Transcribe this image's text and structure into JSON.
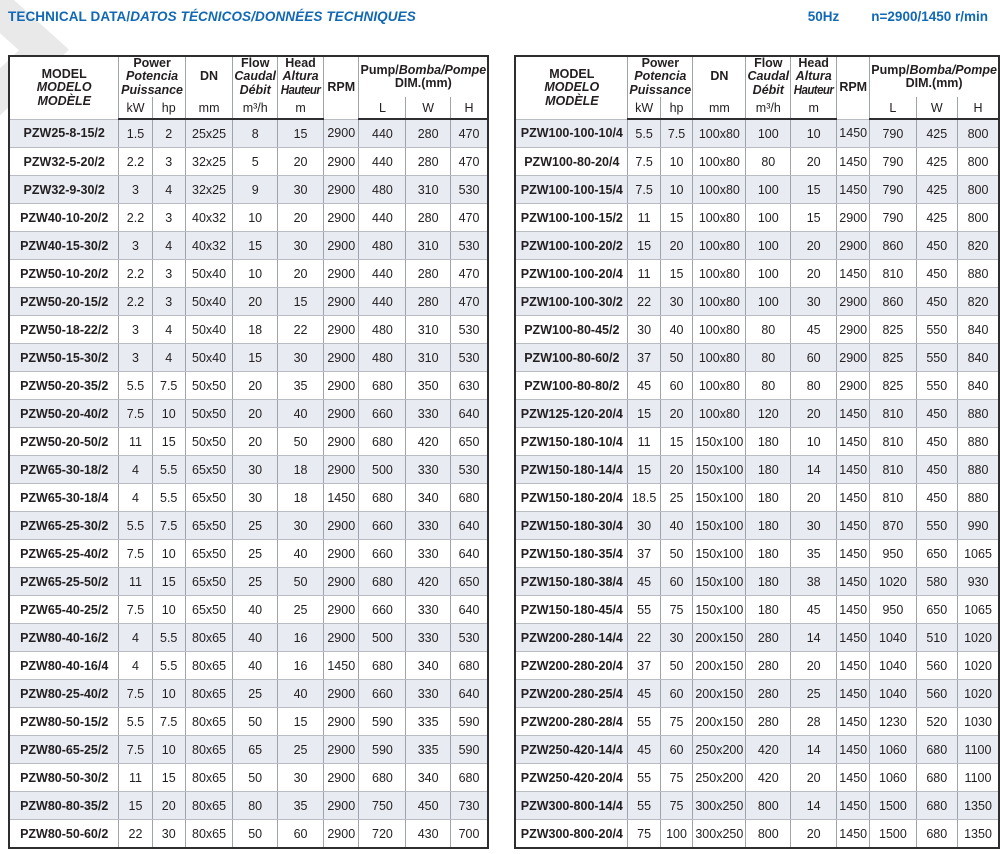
{
  "page": {
    "title_roman": "TECHNICAL DATA/",
    "title_italic": "DATOS TÉCNICOS/DONNÉES TECHNIQUES",
    "frequency": "50Hz",
    "speed": "n=2900/1450 r/min",
    "accent_color": "#1168b4",
    "row_shade_color": "#e8ebf2"
  },
  "header": {
    "model": {
      "l1": "MODEL",
      "l2": "MODELO",
      "l3": "MODÈLE"
    },
    "power": {
      "l1": "Power",
      "l2": "Potencia",
      "l3": "Puissance",
      "u1": "kW",
      "u2": "hp"
    },
    "dn": {
      "label": "DN",
      "unit": "mm"
    },
    "flow": {
      "l1": "Flow",
      "l2": "Caudal",
      "l3": "Débit",
      "unit": "m³/h"
    },
    "head": {
      "l1": "Head",
      "l2": "Altura",
      "l3": "Hauteur",
      "unit": "m"
    },
    "rpm": {
      "label": "RPM"
    },
    "dim": {
      "roman": "Pump/",
      "italic": "Bomba/Pompe",
      "sub": "DIM.(mm)",
      "u1": "L",
      "u2": "W",
      "u3": "H"
    }
  },
  "left_table": {
    "rows": [
      [
        "PZW25-8-15/2",
        "1.5",
        "2",
        "25x25",
        "8",
        "15",
        "2900",
        "440",
        "280",
        "470"
      ],
      [
        "PZW32-5-20/2",
        "2.2",
        "3",
        "32x25",
        "5",
        "20",
        "2900",
        "440",
        "280",
        "470"
      ],
      [
        "PZW32-9-30/2",
        "3",
        "4",
        "32x25",
        "9",
        "30",
        "2900",
        "480",
        "310",
        "530"
      ],
      [
        "PZW40-10-20/2",
        "2.2",
        "3",
        "40x32",
        "10",
        "20",
        "2900",
        "440",
        "280",
        "470"
      ],
      [
        "PZW40-15-30/2",
        "3",
        "4",
        "40x32",
        "15",
        "30",
        "2900",
        "480",
        "310",
        "530"
      ],
      [
        "PZW50-10-20/2",
        "2.2",
        "3",
        "50x40",
        "10",
        "20",
        "2900",
        "440",
        "280",
        "470"
      ],
      [
        "PZW50-20-15/2",
        "2.2",
        "3",
        "50x40",
        "20",
        "15",
        "2900",
        "440",
        "280",
        "470"
      ],
      [
        "PZW50-18-22/2",
        "3",
        "4",
        "50x40",
        "18",
        "22",
        "2900",
        "480",
        "310",
        "530"
      ],
      [
        "PZW50-15-30/2",
        "3",
        "4",
        "50x40",
        "15",
        "30",
        "2900",
        "480",
        "310",
        "530"
      ],
      [
        "PZW50-20-35/2",
        "5.5",
        "7.5",
        "50x50",
        "20",
        "35",
        "2900",
        "680",
        "350",
        "630"
      ],
      [
        "PZW50-20-40/2",
        "7.5",
        "10",
        "50x50",
        "20",
        "40",
        "2900",
        "660",
        "330",
        "640"
      ],
      [
        "PZW50-20-50/2",
        "11",
        "15",
        "50x50",
        "20",
        "50",
        "2900",
        "680",
        "420",
        "650"
      ],
      [
        "PZW65-30-18/2",
        "4",
        "5.5",
        "65x50",
        "30",
        "18",
        "2900",
        "500",
        "330",
        "530"
      ],
      [
        "PZW65-30-18/4",
        "4",
        "5.5",
        "65x50",
        "30",
        "18",
        "1450",
        "680",
        "340",
        "680"
      ],
      [
        "PZW65-25-30/2",
        "5.5",
        "7.5",
        "65x50",
        "25",
        "30",
        "2900",
        "660",
        "330",
        "640"
      ],
      [
        "PZW65-25-40/2",
        "7.5",
        "10",
        "65x50",
        "25",
        "40",
        "2900",
        "660",
        "330",
        "640"
      ],
      [
        "PZW65-25-50/2",
        "11",
        "15",
        "65x50",
        "25",
        "50",
        "2900",
        "680",
        "420",
        "650"
      ],
      [
        "PZW65-40-25/2",
        "7.5",
        "10",
        "65x50",
        "40",
        "25",
        "2900",
        "660",
        "330",
        "640"
      ],
      [
        "PZW80-40-16/2",
        "4",
        "5.5",
        "80x65",
        "40",
        "16",
        "2900",
        "500",
        "330",
        "530"
      ],
      [
        "PZW80-40-16/4",
        "4",
        "5.5",
        "80x65",
        "40",
        "16",
        "1450",
        "680",
        "340",
        "680"
      ],
      [
        "PZW80-25-40/2",
        "7.5",
        "10",
        "80x65",
        "25",
        "40",
        "2900",
        "660",
        "330",
        "640"
      ],
      [
        "PZW80-50-15/2",
        "5.5",
        "7.5",
        "80x65",
        "50",
        "15",
        "2900",
        "590",
        "335",
        "590"
      ],
      [
        "PZW80-65-25/2",
        "7.5",
        "10",
        "80x65",
        "65",
        "25",
        "2900",
        "590",
        "335",
        "590"
      ],
      [
        "PZW80-50-30/2",
        "11",
        "15",
        "80x65",
        "50",
        "30",
        "2900",
        "680",
        "340",
        "680"
      ],
      [
        "PZW80-80-35/2",
        "15",
        "20",
        "80x65",
        "80",
        "35",
        "2900",
        "750",
        "450",
        "730"
      ],
      [
        "PZW80-50-60/2",
        "22",
        "30",
        "80x65",
        "50",
        "60",
        "2900",
        "720",
        "430",
        "700"
      ]
    ]
  },
  "right_table": {
    "rows": [
      [
        "PZW100-100-10/4",
        "5.5",
        "7.5",
        "100x80",
        "100",
        "10",
        "1450",
        "790",
        "425",
        "800"
      ],
      [
        "PZW100-80-20/4",
        "7.5",
        "10",
        "100x80",
        "80",
        "20",
        "1450",
        "790",
        "425",
        "800"
      ],
      [
        "PZW100-100-15/4",
        "7.5",
        "10",
        "100x80",
        "100",
        "15",
        "1450",
        "790",
        "425",
        "800"
      ],
      [
        "PZW100-100-15/2",
        "11",
        "15",
        "100x80",
        "100",
        "15",
        "2900",
        "790",
        "425",
        "800"
      ],
      [
        "PZW100-100-20/2",
        "15",
        "20",
        "100x80",
        "100",
        "20",
        "2900",
        "860",
        "450",
        "820"
      ],
      [
        "PZW100-100-20/4",
        "11",
        "15",
        "100x80",
        "100",
        "20",
        "1450",
        "810",
        "450",
        "880"
      ],
      [
        "PZW100-100-30/2",
        "22",
        "30",
        "100x80",
        "100",
        "30",
        "2900",
        "860",
        "450",
        "820"
      ],
      [
        "PZW100-80-45/2",
        "30",
        "40",
        "100x80",
        "80",
        "45",
        "2900",
        "825",
        "550",
        "840"
      ],
      [
        "PZW100-80-60/2",
        "37",
        "50",
        "100x80",
        "80",
        "60",
        "2900",
        "825",
        "550",
        "840"
      ],
      [
        "PZW100-80-80/2",
        "45",
        "60",
        "100x80",
        "80",
        "80",
        "2900",
        "825",
        "550",
        "840"
      ],
      [
        "PZW125-120-20/4",
        "15",
        "20",
        "100x80",
        "120",
        "20",
        "1450",
        "810",
        "450",
        "880"
      ],
      [
        "PZW150-180-10/4",
        "11",
        "15",
        "150x100",
        "180",
        "10",
        "1450",
        "810",
        "450",
        "880"
      ],
      [
        "PZW150-180-14/4",
        "15",
        "20",
        "150x100",
        "180",
        "14",
        "1450",
        "810",
        "450",
        "880"
      ],
      [
        "PZW150-180-20/4",
        "18.5",
        "25",
        "150x100",
        "180",
        "20",
        "1450",
        "810",
        "450",
        "880"
      ],
      [
        "PZW150-180-30/4",
        "30",
        "40",
        "150x100",
        "180",
        "30",
        "1450",
        "870",
        "550",
        "990"
      ],
      [
        "PZW150-180-35/4",
        "37",
        "50",
        "150x100",
        "180",
        "35",
        "1450",
        "950",
        "650",
        "1065"
      ],
      [
        "PZW150-180-38/4",
        "45",
        "60",
        "150x100",
        "180",
        "38",
        "1450",
        "1020",
        "580",
        "930"
      ],
      [
        "PZW150-180-45/4",
        "55",
        "75",
        "150x100",
        "180",
        "45",
        "1450",
        "950",
        "650",
        "1065"
      ],
      [
        "PZW200-280-14/4",
        "22",
        "30",
        "200x150",
        "280",
        "14",
        "1450",
        "1040",
        "510",
        "1020"
      ],
      [
        "PZW200-280-20/4",
        "37",
        "50",
        "200x150",
        "280",
        "20",
        "1450",
        "1040",
        "560",
        "1020"
      ],
      [
        "PZW200-280-25/4",
        "45",
        "60",
        "200x150",
        "280",
        "25",
        "1450",
        "1040",
        "560",
        "1020"
      ],
      [
        "PZW200-280-28/4",
        "55",
        "75",
        "200x150",
        "280",
        "28",
        "1450",
        "1230",
        "520",
        "1030"
      ],
      [
        "PZW250-420-14/4",
        "45",
        "60",
        "250x200",
        "420",
        "14",
        "1450",
        "1060",
        "680",
        "1100"
      ],
      [
        "PZW250-420-20/4",
        "55",
        "75",
        "250x200",
        "420",
        "20",
        "1450",
        "1060",
        "680",
        "1100"
      ],
      [
        "PZW300-800-14/4",
        "55",
        "75",
        "300x250",
        "800",
        "14",
        "1450",
        "1500",
        "680",
        "1350"
      ],
      [
        "PZW300-800-20/4",
        "75",
        "100",
        "300x250",
        "800",
        "20",
        "1450",
        "1500",
        "680",
        "1350"
      ]
    ]
  }
}
